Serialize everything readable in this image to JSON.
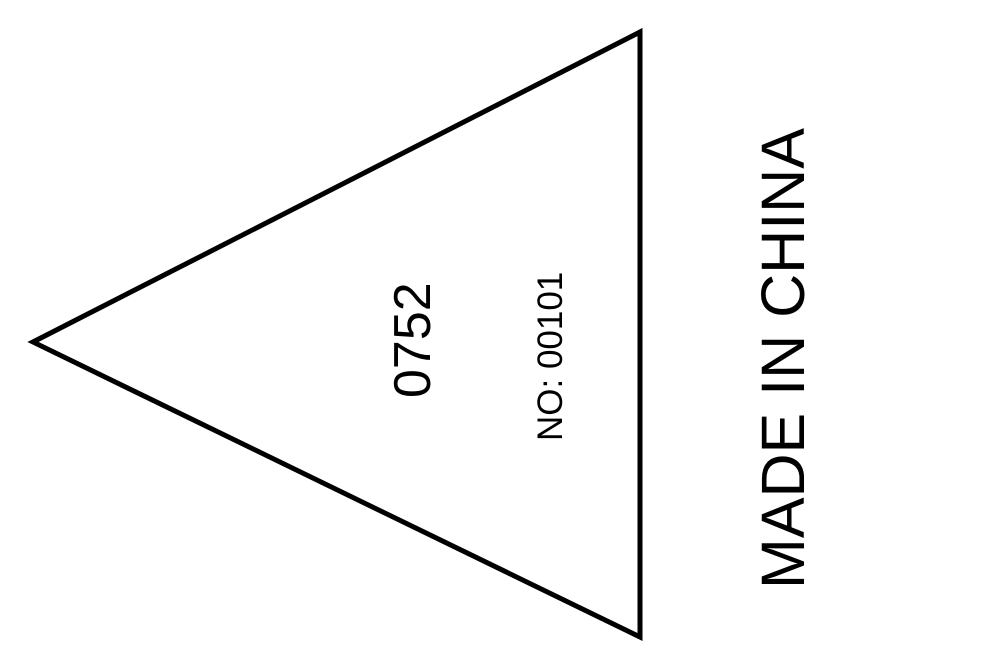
{
  "label": {
    "code_number": "0752",
    "serial_number": "NO: 00101",
    "origin": "MADE IN CHINA"
  },
  "colors": {
    "ink": "#000000",
    "background": "#ffffff"
  },
  "shapes": {
    "outline_shape": "triangle",
    "orientation": "pointing-left"
  }
}
